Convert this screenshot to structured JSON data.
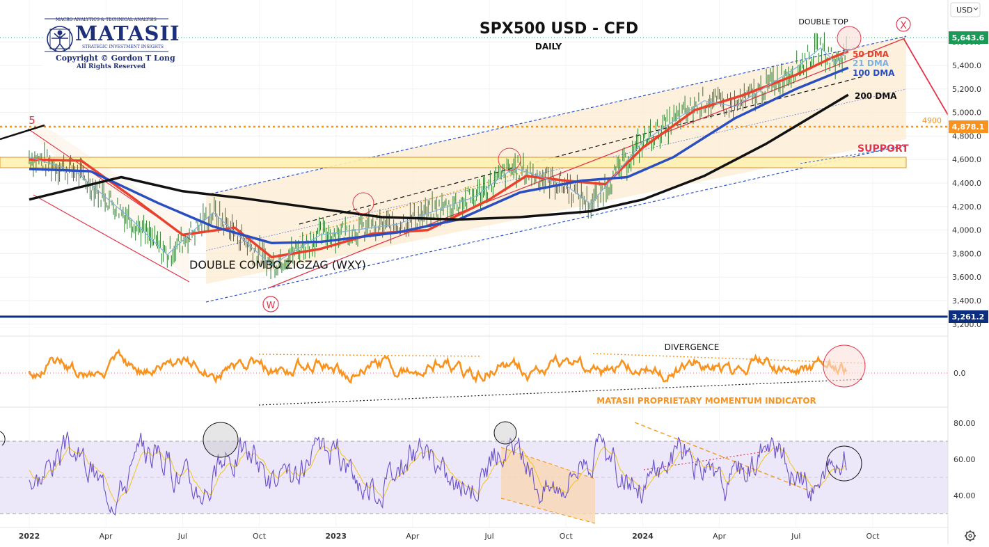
{
  "currency_button": "USD",
  "settings_icon": "gear-icon",
  "logo": {
    "top_line": "MACRO ANALYTICS & TECHNICAL ANALYSIS",
    "brand": "MATASII",
    "tagline": "STRATEGIC INVESTMENT INSIGHTS",
    "copyright": "Copyright © Gordon T Long",
    "rights": "All Rights Reserved"
  },
  "colors": {
    "ma50": "#e8412c",
    "ma21": "#7fb1e0",
    "ma100": "#2a4ec0",
    "ma200": "#111111",
    "momentum": "#f7931e",
    "rsi": "#6a4fc7",
    "price_label": "#1b9a57",
    "level_4900": "#f7931e",
    "level_3261": "#0b2f7e",
    "annotation_red": "#e0354b"
  },
  "chart_data": [
    {
      "type": "line",
      "title": "SPX500 USD - CFD",
      "subtitle": "DAILY",
      "ylim": [
        3150,
        5960
      ],
      "y_ticks": [
        "5,400.0",
        "5,200.0",
        "5,000.0",
        "4,800.0",
        "4,600.0",
        "4,400.0",
        "4,200.0",
        "4,000.0",
        "3,800.0",
        "3,600.0",
        "3,400.0",
        "3,200.0",
        "5,600.0"
      ],
      "x_ticks": [
        "2022",
        "Apr",
        "Jul",
        "Oct",
        "2023",
        "Apr",
        "Jul",
        "Oct",
        "2024",
        "Apr",
        "Jul",
        "Oct"
      ],
      "last_price": "5,643.6",
      "series": [
        {
          "name": "50 DMA",
          "points": [
            [
              2022.0,
              4600
            ],
            [
              2022.17,
              4590
            ],
            [
              2022.33,
              4290
            ],
            [
              2022.5,
              3960
            ],
            [
              2022.67,
              4020
            ],
            [
              2022.79,
              3770
            ],
            [
              2022.95,
              3840
            ],
            [
              2023.12,
              3970
            ],
            [
              2023.3,
              4000
            ],
            [
              2023.5,
              4260
            ],
            [
              2023.62,
              4460
            ],
            [
              2023.75,
              4420
            ],
            [
              2023.88,
              4390
            ],
            [
              2024.0,
              4700
            ],
            [
              2024.17,
              5020
            ],
            [
              2024.33,
              5150
            ],
            [
              2024.5,
              5320
            ],
            [
              2024.62,
              5470
            ],
            [
              2024.67,
              5520
            ]
          ]
        },
        {
          "name": "21 DMA",
          "points": [
            [
              2022.0,
              4620
            ],
            [
              2022.15,
              4500
            ],
            [
              2022.33,
              4100
            ],
            [
              2022.45,
              3790
            ],
            [
              2022.6,
              4150
            ],
            [
              2022.79,
              3700
            ],
            [
              2022.95,
              3960
            ],
            [
              2023.2,
              4050
            ],
            [
              2023.45,
              4280
            ],
            [
              2023.58,
              4530
            ],
            [
              2023.75,
              4380
            ],
            [
              2023.83,
              4220
            ],
            [
              2024.0,
              4750
            ],
            [
              2024.2,
              5100
            ],
            [
              2024.3,
              5050
            ],
            [
              2024.5,
              5380
            ],
            [
              2024.58,
              5550
            ],
            [
              2024.63,
              5420
            ],
            [
              2024.67,
              5540
            ]
          ]
        },
        {
          "name": "100 DMA",
          "points": [
            [
              2022.0,
              4520
            ],
            [
              2022.2,
              4500
            ],
            [
              2022.42,
              4230
            ],
            [
              2022.6,
              4030
            ],
            [
              2022.79,
              3890
            ],
            [
              2022.95,
              3900
            ],
            [
              2023.2,
              3980
            ],
            [
              2023.4,
              4090
            ],
            [
              2023.6,
              4320
            ],
            [
              2023.8,
              4420
            ],
            [
              2023.95,
              4450
            ],
            [
              2024.1,
              4620
            ],
            [
              2024.3,
              4950
            ],
            [
              2024.5,
              5200
            ],
            [
              2024.67,
              5380
            ]
          ]
        },
        {
          "name": "200 DMA",
          "points": [
            [
              2022.0,
              4260
            ],
            [
              2022.3,
              4450
            ],
            [
              2022.5,
              4330
            ],
            [
              2022.7,
              4270
            ],
            [
              2022.95,
              4180
            ],
            [
              2023.15,
              4110
            ],
            [
              2023.4,
              4090
            ],
            [
              2023.6,
              4110
            ],
            [
              2023.83,
              4160
            ],
            [
              2024.0,
              4260
            ],
            [
              2024.2,
              4460
            ],
            [
              2024.4,
              4730
            ],
            [
              2024.67,
              5150
            ]
          ]
        }
      ],
      "annotations": {
        "ma_labels": [
          "50 DMA",
          "21 DMA",
          "100 DMA",
          "200 DMA"
        ],
        "pattern": "DOUBLE COMBO ZIGZAG (WXY)",
        "double_top": "DOUBLE TOP",
        "support": "SUPPORT",
        "wave_5": "5",
        "wave_w": "W",
        "wave_x": "X",
        "level_4900_label": "4900",
        "level_4900_price": "4,878.1",
        "level_3261_price": "3,261.2"
      }
    },
    {
      "type": "line",
      "title": "",
      "y_ticks": [
        "0.0"
      ],
      "annotations": {
        "divergence": "DIVERGENCE",
        "indicator": "MATASII PROPRIETARY MOMENTUM INDICATOR"
      }
    },
    {
      "type": "line",
      "title": "",
      "ylim": [
        20,
        85
      ],
      "y_ticks": [
        "80.00",
        "60.00",
        "40.00"
      ],
      "band": [
        30,
        70
      ]
    }
  ]
}
